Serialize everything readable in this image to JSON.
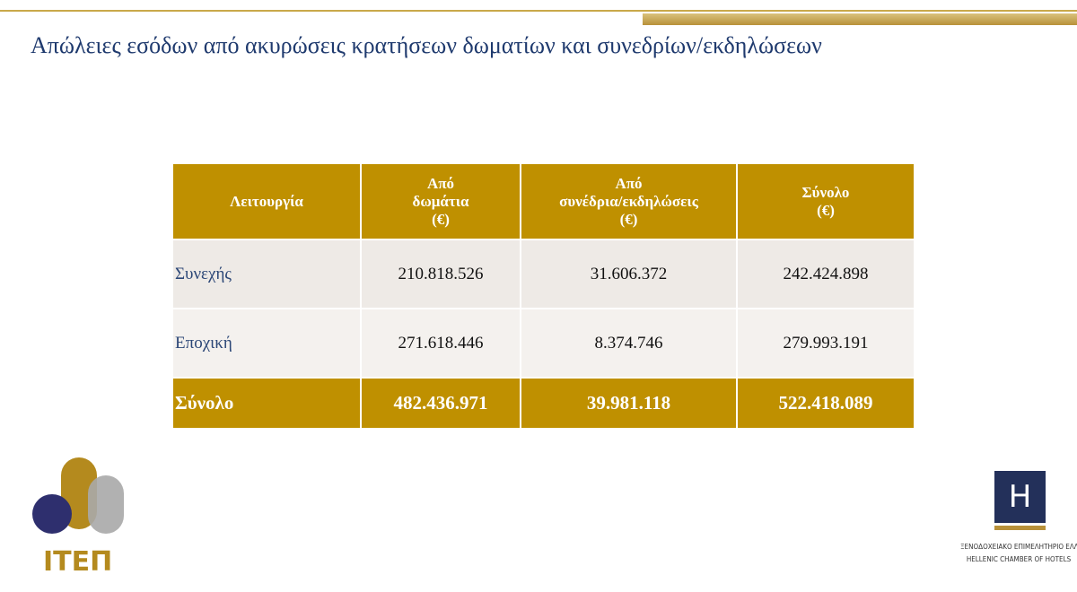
{
  "header": {
    "title": "Απώλειες εσόδων από ακυρώσεις κρατήσεων δωματίων και συνεδρίων/εκδηλώσεων"
  },
  "table": {
    "columns": [
      [
        "Λειτουργία"
      ],
      [
        "Από",
        "δωμάτια",
        "(€)"
      ],
      [
        "Από",
        "συνέδρια/εκδηλώσεις",
        "(€)"
      ],
      [
        "Σύνολο",
        "(€)"
      ]
    ],
    "rows": [
      [
        "Συνεχής",
        "210.818.526",
        "31.606.372",
        "242.424.898"
      ],
      [
        "Εποχική",
        "271.618.446",
        "8.374.746",
        "279.993.191"
      ]
    ],
    "total": [
      "Σύνολο",
      "482.436.971",
      "39.981.118",
      "522.418.089"
    ]
  },
  "logos": {
    "left": "ΙΤΕΠ",
    "right": {
      "mark": "H",
      "lines": [
        "ΞΕΝΟΔΟΧΕΙΑΚΟ ΕΠΙΜΕΛΗΤΗΡΙΟ ΕΛΛΑΔΟΣ",
        "HELLENIC CHAMBER OF HOTELS"
      ]
    }
  }
}
